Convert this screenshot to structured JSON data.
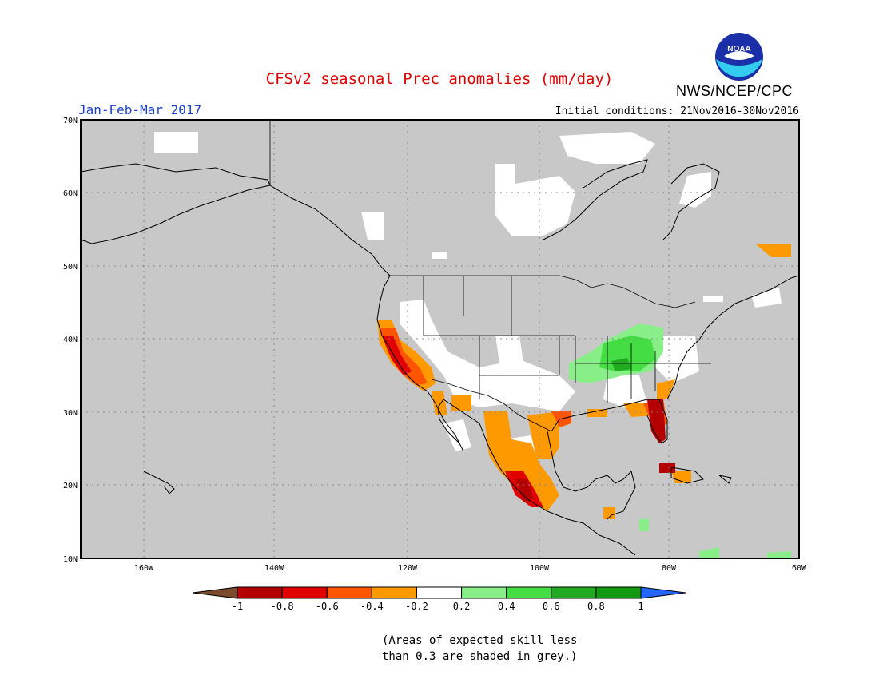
{
  "title": "CFSv2 seasonal Prec anomalies (mm/day)",
  "season": "Jan-Feb-Mar 2017",
  "initial_conditions": "Initial conditions: 21Nov2016-30Nov2016",
  "agency": "NWS/NCEP/CPC",
  "logo_text": "NOAA",
  "footnote": {
    "line1": "(Areas of expected skill less",
    "line2": "than 0.3 are shaded in grey.)"
  },
  "map": {
    "lon_range": [
      -172,
      -60
    ],
    "lat_range": [
      10,
      70
    ],
    "grid": true,
    "lat_ticks": [
      "10N",
      "20N",
      "30N",
      "40N",
      "50N",
      "60N",
      "70N"
    ],
    "lon_ticks": [
      "160W",
      "140W",
      "120W",
      "100W",
      "80W",
      "60W"
    ],
    "low_skill_color": "#c8c8c8"
  },
  "colorbar": {
    "ticks": [
      "-1",
      "-0.8",
      "-0.6",
      "-0.4",
      "-0.2",
      "0.2",
      "0.4",
      "0.6",
      "0.8",
      "1"
    ],
    "colors": [
      "#7a4a2a",
      "#b40000",
      "#e00000",
      "#ff5500",
      "#ff9900",
      "#ffffff",
      "#88ee88",
      "#44dd44",
      "#22aa22",
      "#119911",
      "#2266ff"
    ]
  }
}
